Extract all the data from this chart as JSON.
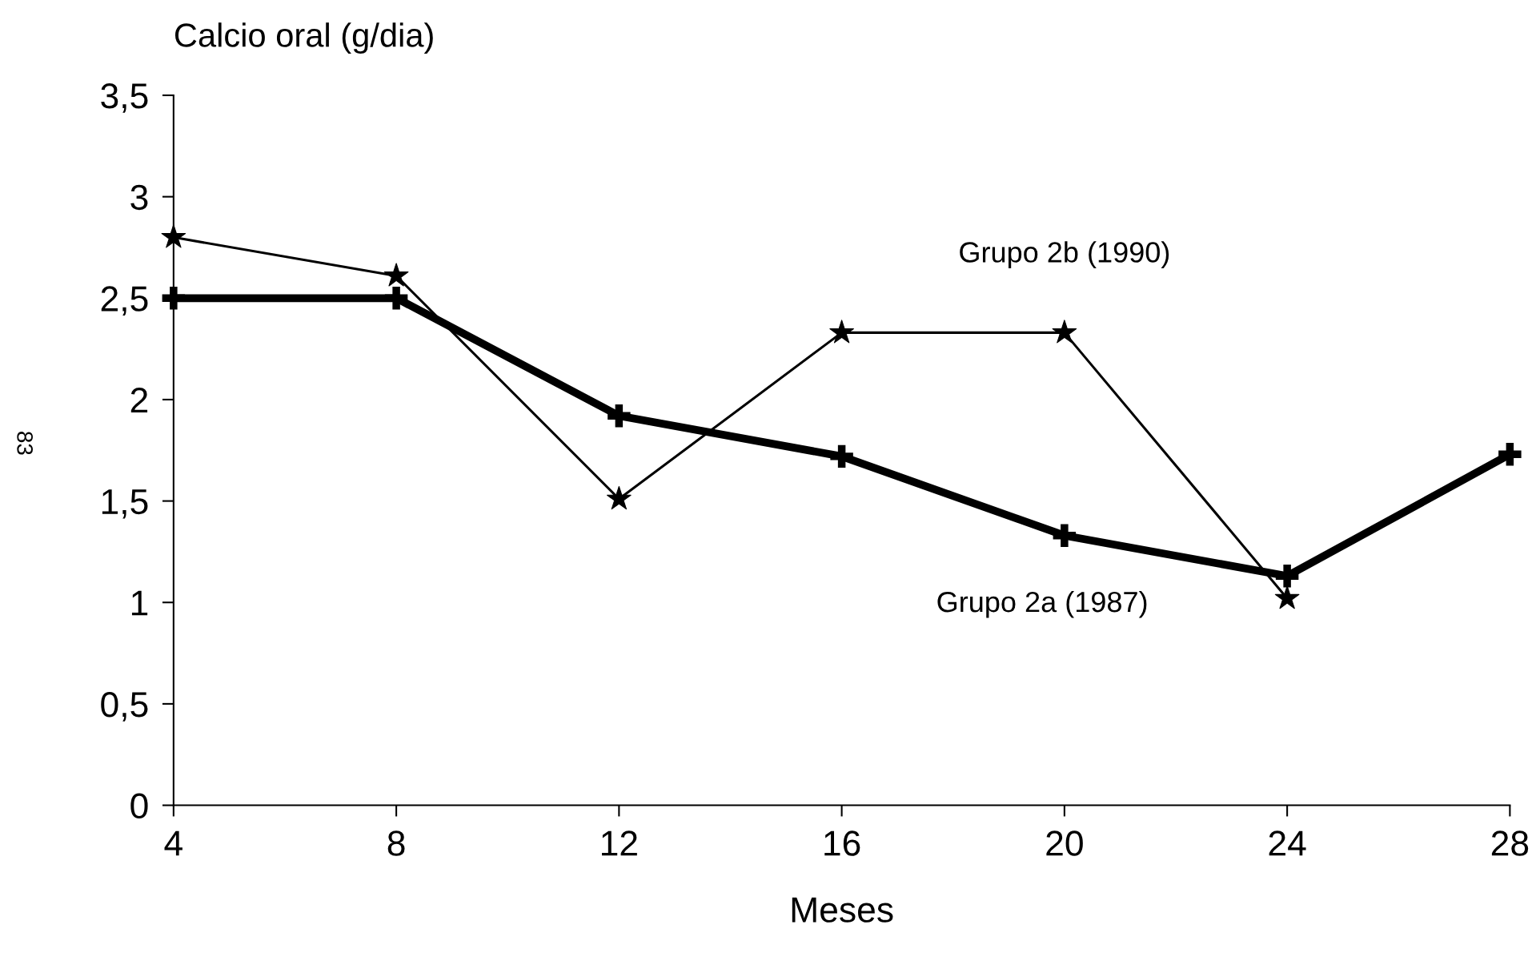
{
  "chart_data": {
    "type": "line",
    "ylabel": "Calcio oral (g/dia)",
    "xlabel": "Meses",
    "x": [
      4,
      8,
      12,
      16,
      20,
      24,
      28
    ],
    "series": [
      {
        "name": "Grupo 2a (1987)",
        "color": "#000000",
        "values": [
          2.5,
          2.5,
          1.92,
          1.72,
          1.33,
          1.13,
          1.73
        ],
        "marker": "cross"
      },
      {
        "name": "Grupo 2b (1990)",
        "color": "#000000",
        "values": [
          2.8,
          2.61,
          1.51,
          2.33,
          2.33,
          1.02,
          null
        ],
        "marker": "star"
      }
    ],
    "xlim": [
      4,
      28
    ],
    "xticks": [
      4,
      8,
      12,
      16,
      20,
      24,
      28
    ],
    "ylim": [
      0,
      3.5
    ],
    "yticks": [
      {
        "value": 0,
        "label": "0"
      },
      {
        "value": 0.5,
        "label": "0,5"
      },
      {
        "value": 1,
        "label": "1"
      },
      {
        "value": 1.5,
        "label": "1,5"
      },
      {
        "value": 2,
        "label": "2"
      },
      {
        "value": 2.5,
        "label": "2,5"
      },
      {
        "value": 3,
        "label": "3"
      },
      {
        "value": 3.5,
        "label": "3,5"
      }
    ],
    "grid": false,
    "legend": false,
    "line_style": "solid",
    "annotations": [
      "83"
    ]
  }
}
